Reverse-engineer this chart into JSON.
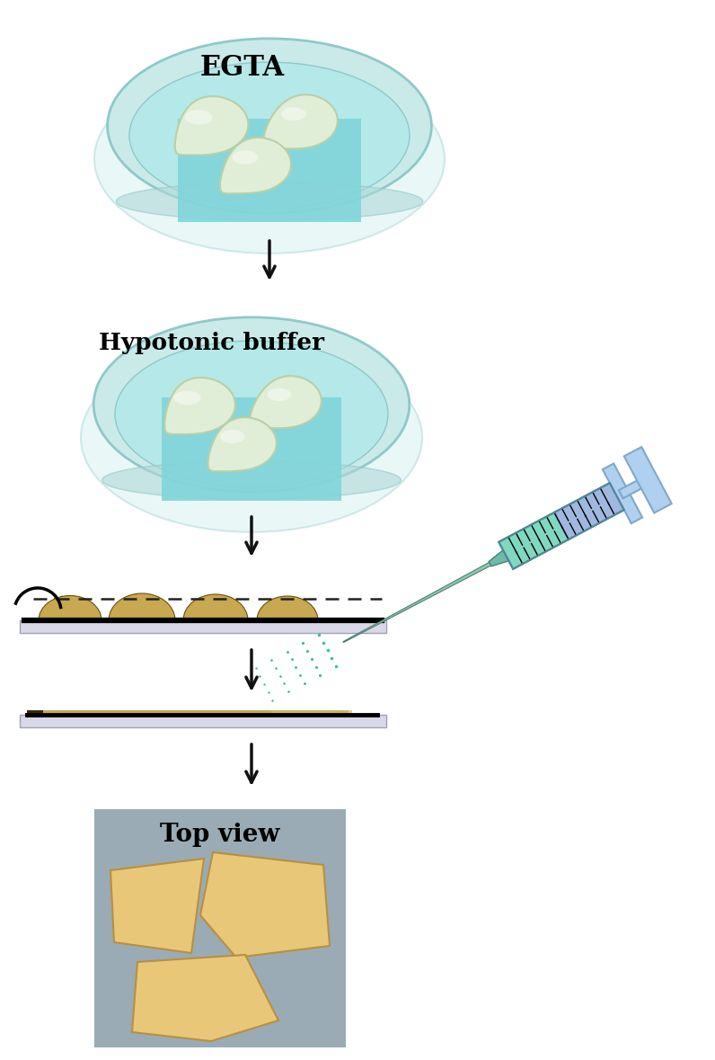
{
  "fig_width": 7.96,
  "fig_height": 11.79,
  "bg_color": "#ffffff",
  "dish_very_outer": "#e0f5f5",
  "dish_outer_color": "#caeaea",
  "dish_inner_color": "#b5e8e8",
  "dish_liquid_color": "#c8f0f0",
  "dish_rim_color": "#90c8c8",
  "dish_bottom_color": "#b0d8d8",
  "square_bg_color": "#80d5da",
  "cell_body_color": "#e0eed8",
  "cell_shadow_color": "#c8dcc0",
  "label_egta": "EGTA",
  "label_hypotonic": "Hypotonic buffer",
  "label_topview": "Top view",
  "arrow_color": "#111111",
  "membrane_tan": "#c8a850",
  "membrane_mid": "#b09040",
  "membrane_dark": "#6a5010",
  "slide_color": "#d8d8e8",
  "slide_edge": "#a0a0b8",
  "topview_bg": "#9aabb5",
  "topview_cell": "#e8c878",
  "topview_cell_edge": "#b89040",
  "syringe_barrel_green": "#80d8c0",
  "syringe_barrel_blue": "#a0b8e0",
  "syringe_plunger": "#b0d0f0",
  "syringe_needle": "#80c0a0",
  "syringe_tip": "#70b8a8",
  "spray_color": "#20b898"
}
